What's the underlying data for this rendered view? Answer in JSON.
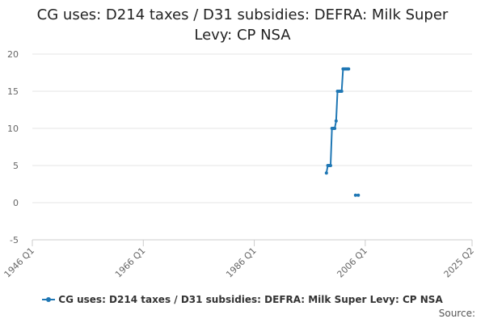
{
  "title_line1": "CG uses: D214 taxes / D31 subsidies: DEFRA: Milk Super",
  "title_line2": "Levy: CP NSA",
  "source_label": "Source:",
  "chart_data": {
    "type": "line",
    "title": "CG uses: D214 taxes / D31 subsidies: DEFRA: Milk Super Levy: CP NSA",
    "xlabel": "",
    "ylabel": "",
    "x_ticks": [
      "1946 Q1",
      "1966 Q1",
      "1986 Q1",
      "2006 Q1",
      "2025 Q2"
    ],
    "y_ticks": [
      -5,
      0,
      5,
      10,
      15,
      20
    ],
    "ylim": [
      -5,
      20
    ],
    "grid": true,
    "legend_position": "bottom",
    "color": "#1f77b4",
    "series": [
      {
        "name": "CG uses: D214 taxes / D31 subsidies: DEFRA: Milk Super Levy: CP NSA",
        "points": [
          {
            "x": "1999 Q1",
            "y": 4
          },
          {
            "x": "1999 Q2",
            "y": 5
          },
          {
            "x": "1999 Q3",
            "y": 5
          },
          {
            "x": "1999 Q4",
            "y": 5
          },
          {
            "x": "2000 Q1",
            "y": 10
          },
          {
            "x": "2000 Q2",
            "y": 10
          },
          {
            "x": "2000 Q3",
            "y": 10
          },
          {
            "x": "2000 Q4",
            "y": 11
          },
          {
            "x": "2001 Q1",
            "y": 15
          },
          {
            "x": "2001 Q2",
            "y": 15
          },
          {
            "x": "2001 Q3",
            "y": 15
          },
          {
            "x": "2001 Q4",
            "y": 15
          },
          {
            "x": "2002 Q1",
            "y": 18
          },
          {
            "x": "2002 Q2",
            "y": 18
          },
          {
            "x": "2002 Q3",
            "y": 18
          },
          {
            "x": "2002 Q4",
            "y": 18
          },
          {
            "x": "2003 Q1",
            "y": 18
          },
          {
            "x": "2003 Q2",
            "y": null
          },
          {
            "x": "2003 Q3",
            "y": null
          },
          {
            "x": "2003 Q4",
            "y": null
          },
          {
            "x": "2004 Q1",
            "y": null
          },
          {
            "x": "2004 Q2",
            "y": 1
          },
          {
            "x": "2004 Q3",
            "y": null
          },
          {
            "x": "2004 Q4",
            "y": 1
          }
        ]
      }
    ]
  }
}
